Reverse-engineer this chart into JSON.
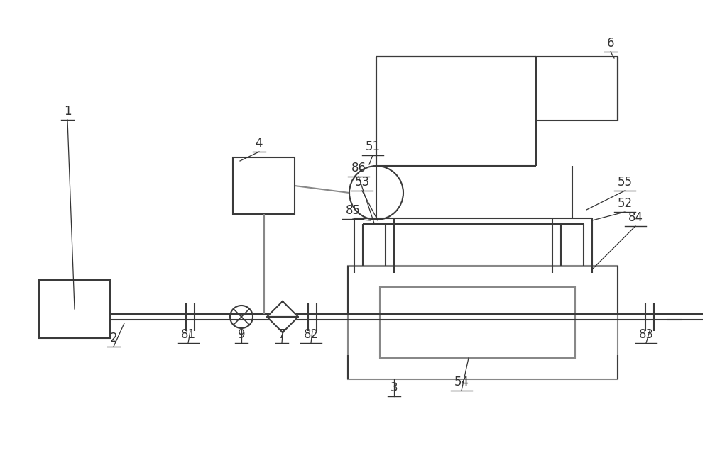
{
  "bg_color": "#ffffff",
  "lc": "#3a3a3a",
  "gc": "#888888",
  "lw": 1.5,
  "tlw": 1.2
}
